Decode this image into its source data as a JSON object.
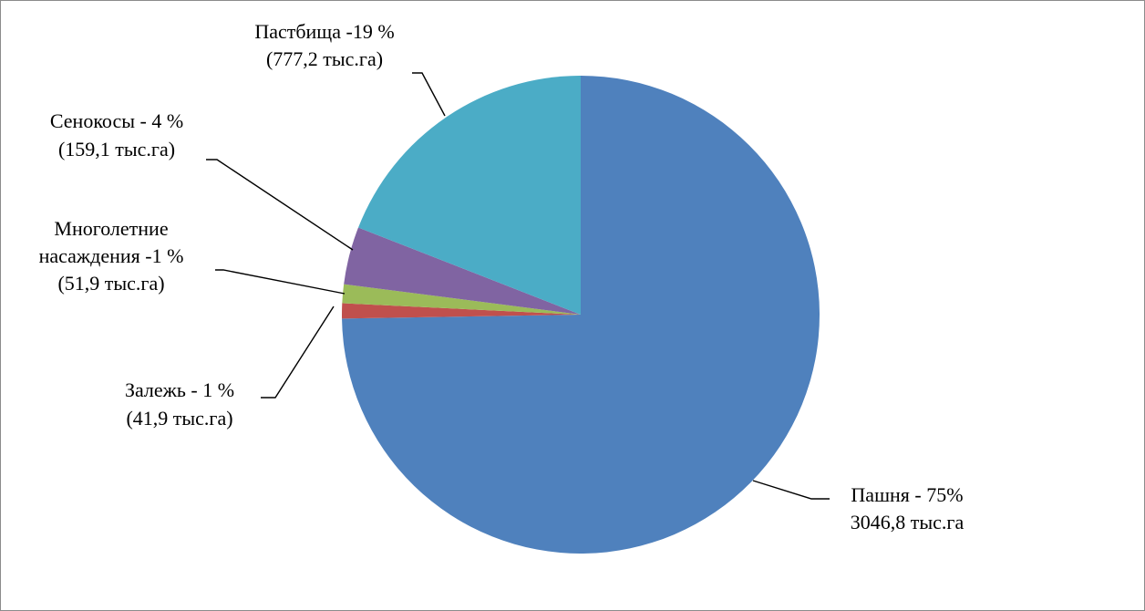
{
  "chart_data": {
    "type": "pie",
    "title": "",
    "start_angle_deg": 0,
    "direction": "clockwise",
    "slices": [
      {
        "category": "Пашня",
        "percent_label": "75%",
        "value": 3046.8,
        "unit": "тыс.га",
        "color": "#4F81BD",
        "label_lines": [
          "Пашня - 75%",
          "3046,8 тыс.га"
        ]
      },
      {
        "category": "Залежь",
        "percent_label": "1 %",
        "value": 41.9,
        "unit": "тыс.га",
        "color": "#C0504D",
        "label_lines": [
          "Залежь - 1 %",
          "(41,9 тыс.га)"
        ]
      },
      {
        "category": "Многолетние насаждения",
        "percent_label": "1 %",
        "value": 51.9,
        "unit": "тыс.га",
        "color": "#9BBB59",
        "label_lines": [
          "Многолетние",
          "насаждения -1 %",
          "(51,9 тыс.га)"
        ]
      },
      {
        "category": "Сенокосы",
        "percent_label": "4 %",
        "value": 159.1,
        "unit": "тыс.га",
        "color": "#8064A2",
        "label_lines": [
          "Сенокосы - 4 %",
          "(159,1 тыс.га)"
        ]
      },
      {
        "category": "Пастбища",
        "percent_label": "19 %",
        "value": 777.2,
        "unit": "тыс.га",
        "color": "#4BACC6",
        "label_lines": [
          "Пастбища -19 %",
          "(777,2 тыс.га)"
        ]
      }
    ],
    "legend": "none"
  }
}
